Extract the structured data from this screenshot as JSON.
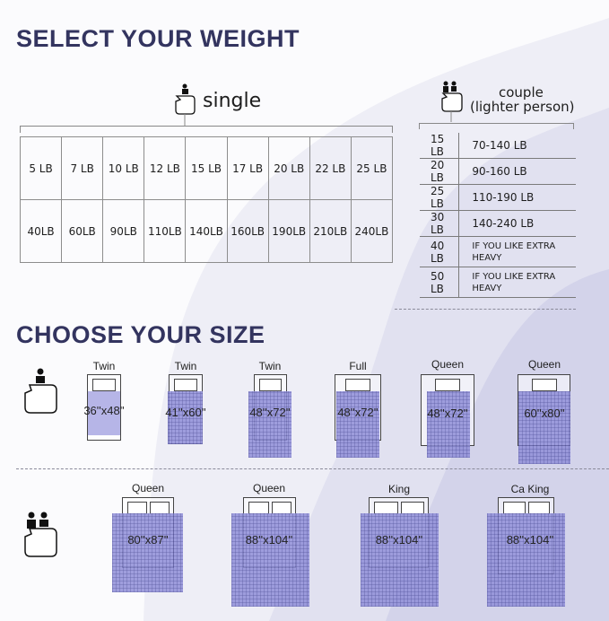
{
  "colors": {
    "title": "#33345f",
    "blanket": "#8f8ed8",
    "background": "#fbfbfd"
  },
  "weight_title": "SELECT YOUR WEIGHT",
  "single": {
    "label": "single",
    "icon": "single-person-blanket-icon",
    "row1": [
      "5 LB",
      "7 LB",
      "10 LB",
      "12 LB",
      "15 LB",
      "17 LB",
      "20 LB",
      "22 LB",
      "25 LB"
    ],
    "row2": [
      "40LB",
      "60LB",
      "90LB",
      "110LB",
      "140LB",
      "160LB",
      "190LB",
      "210LB",
      "240LB"
    ]
  },
  "couple": {
    "label": "couple",
    "sublabel": "(lighter person)",
    "icon": "couple-blanket-icon",
    "rows": [
      {
        "weight": "15 LB",
        "range": "70-140 LB"
      },
      {
        "weight": "20 LB",
        "range": "90-160 LB"
      },
      {
        "weight": "25 LB",
        "range": "110-190 LB"
      },
      {
        "weight": "30 LB",
        "range": "140-240 LB"
      },
      {
        "weight": "40 LB",
        "range": "IF YOU LIKE EXTRA HEAVY"
      },
      {
        "weight": "50 LB",
        "range": "IF YOU LIKE EXTRA HEAVY"
      }
    ]
  },
  "size_title": "CHOOSE YOUR SIZE",
  "single_sizes": [
    {
      "bed": "Twin",
      "size": "36''x48''"
    },
    {
      "bed": "Twin",
      "size": "41''x60''"
    },
    {
      "bed": "Twin",
      "size": "48''x72''"
    },
    {
      "bed": "Full",
      "size": "48''x72''"
    },
    {
      "bed": "Queen",
      "size": "48''x72''"
    },
    {
      "bed": "Queen",
      "size": "60''x80''"
    }
  ],
  "couple_sizes": [
    {
      "bed": "Queen",
      "size": "80''x87''"
    },
    {
      "bed": "Queen",
      "size": "88''x104''"
    },
    {
      "bed": "King",
      "size": "88''x104''"
    },
    {
      "bed": "Ca King",
      "size": "88''x104''"
    }
  ]
}
